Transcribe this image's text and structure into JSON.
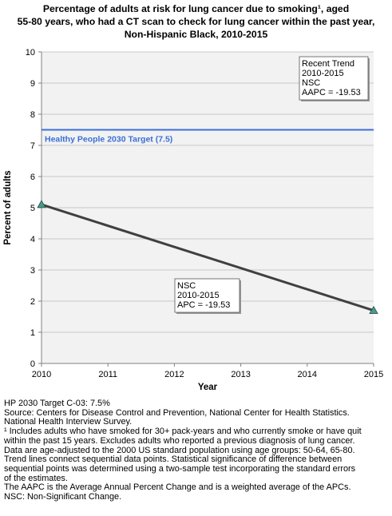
{
  "title_lines": [
    "Percentage of adults at risk for lung cancer due to smoking¹, aged",
    "55-80 years, who had a CT scan to check for lung cancer within the past year,",
    "Non-Hispanic Black,  2010-2015"
  ],
  "chart_data": {
    "type": "line",
    "xlabel": "Year",
    "ylabel": "Percent of adults",
    "xlim": [
      2010,
      2015
    ],
    "ylim": [
      0,
      10
    ],
    "x_ticks": [
      "2010",
      "2011",
      "2012",
      "2013",
      "2014",
      "2015"
    ],
    "y_ticks": [
      "0",
      "1",
      "2",
      "3",
      "4",
      "5",
      "6",
      "7",
      "8",
      "9",
      "10"
    ],
    "grid": true,
    "series": [
      {
        "points": [
          {
            "x": 2010,
            "y": 5.1
          },
          {
            "x": 2015,
            "y": 1.7
          }
        ],
        "color": "#404040",
        "marker_color": "#4a9a8c"
      }
    ],
    "target_line": {
      "value": 7.5,
      "label": "Healthy People 2030 Target (7.5)",
      "color": "#3a6fd8"
    },
    "annotations": {
      "recent_trend": [
        "Recent Trend",
        "2010-2015",
        "NSC",
        "AAPC = -19.53"
      ],
      "segment": [
        "NSC",
        "2010-2015",
        "APC = -19.53"
      ]
    }
  },
  "footnotes": [
    "HP 2030 Target C-03: 7.5%",
    "Source: Centers for Disease Control and Prevention, National Center for Health Statistics.",
    "National Health Interview Survey.",
    "¹ Includes adults who have smoked for 30+ pack-years and who currently smoke or have quit",
    "within the past 15 years. Excludes adults who reported a previous diagnosis of lung cancer.",
    "Data are age-adjusted to the 2000 US standard population using age groups: 50-64, 65-80.",
    "Trend lines connect sequential data points. Statistical significance of difference between",
    "sequential points was determined using a two-sample test incorporating the standard errors",
    "of the estimates.",
    "The AAPC is the Average Annual Percent Change and is a weighted average of the APCs.",
    "NSC: Non-Significant Change."
  ]
}
